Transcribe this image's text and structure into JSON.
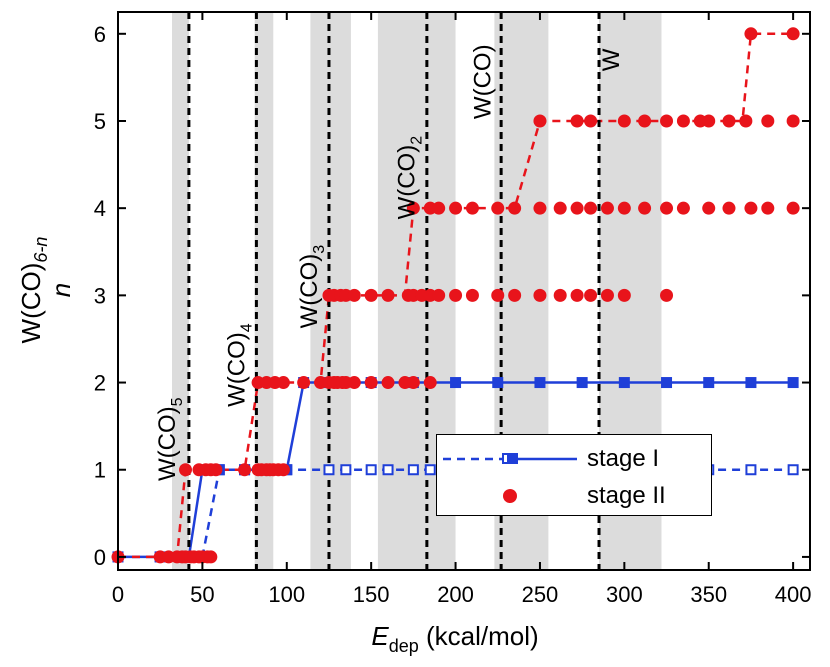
{
  "chart_data": {
    "type": "scatter",
    "title": "",
    "xlabel_main": "E",
    "xlabel_sub": "dep",
    "xlabel_rest": " (kcal/mol)",
    "ylabel": "n",
    "ylabel_formula": {
      "base": "W(CO)",
      "sub": "6-n"
    },
    "xlim": [
      0,
      410
    ],
    "ylim": [
      -0.15,
      6.25
    ],
    "x_ticks": [
      0,
      50,
      100,
      150,
      200,
      250,
      300,
      350,
      400
    ],
    "y_ticks": [
      0,
      1,
      2,
      3,
      4,
      5,
      6
    ],
    "vlines": [
      42,
      82,
      125,
      183,
      227,
      285
    ],
    "shaded_bands": [
      [
        32,
        42
      ],
      [
        81,
        92
      ],
      [
        114,
        138
      ],
      [
        154,
        200
      ],
      [
        223,
        255
      ],
      [
        285,
        322
      ]
    ],
    "annotations": [
      {
        "text": "W(CO)",
        "sub": "5",
        "x": 35,
        "y": 1.35
      },
      {
        "text": "W(CO)",
        "sub": "4",
        "x": 76,
        "y": 2.2
      },
      {
        "text": "W(CO)",
        "sub": "3",
        "x": 119,
        "y": 3.1
      },
      {
        "text": "W(CO)",
        "sub": "2",
        "x": 177,
        "y": 4.35
      },
      {
        "text": "W(CO)",
        "sub": "",
        "x": 222,
        "y": 5.45
      },
      {
        "text": "W",
        "sub": "",
        "x": 298,
        "y": 5.7
      }
    ],
    "series": [
      {
        "name": "stage I",
        "style": "solid",
        "color": "#1f3fd8",
        "marker": "square",
        "points": [
          [
            0,
            0
          ],
          [
            25,
            0
          ],
          [
            42,
            0
          ],
          [
            50,
            1
          ],
          [
            60,
            1
          ],
          [
            75,
            1
          ],
          [
            100,
            1
          ],
          [
            110,
            2
          ],
          [
            125,
            2
          ],
          [
            150,
            2
          ],
          [
            175,
            2
          ],
          [
            200,
            2
          ],
          [
            225,
            2
          ],
          [
            250,
            2
          ],
          [
            275,
            2
          ],
          [
            300,
            2
          ],
          [
            325,
            2
          ],
          [
            350,
            2
          ],
          [
            375,
            2
          ],
          [
            400,
            2
          ]
        ]
      },
      {
        "name": "stage I",
        "style": "dashed",
        "color": "#1f3fd8",
        "marker": "open-square",
        "points": [
          [
            0,
            0
          ],
          [
            25,
            0
          ],
          [
            50,
            0
          ],
          [
            60,
            1
          ],
          [
            75,
            1
          ],
          [
            100,
            1
          ],
          [
            125,
            1
          ],
          [
            135,
            1
          ],
          [
            150,
            1
          ],
          [
            160,
            1
          ],
          [
            175,
            1
          ],
          [
            185,
            1
          ],
          [
            200,
            1
          ],
          [
            225,
            1
          ],
          [
            250,
            1
          ],
          [
            275,
            1
          ],
          [
            300,
            1
          ],
          [
            325,
            1
          ],
          [
            350,
            1
          ],
          [
            375,
            1
          ],
          [
            400,
            1
          ]
        ]
      },
      {
        "name": "stage II",
        "style": "dashed",
        "color": "#e8141b",
        "marker": "circle",
        "points": [
          [
            0,
            0
          ],
          [
            25,
            0
          ],
          [
            30,
            0
          ],
          [
            35,
            0
          ],
          [
            38,
            0
          ],
          [
            40,
            0
          ],
          [
            43,
            0
          ],
          [
            45,
            0
          ],
          [
            48,
            0
          ],
          [
            50,
            0
          ],
          [
            53,
            0
          ],
          [
            55,
            0
          ],
          [
            40,
            1
          ],
          [
            48,
            1
          ],
          [
            52,
            1
          ],
          [
            55,
            1
          ],
          [
            58,
            1
          ],
          [
            75,
            1
          ],
          [
            83,
            1
          ],
          [
            85,
            1
          ],
          [
            88,
            1
          ],
          [
            90,
            1
          ],
          [
            92,
            1
          ],
          [
            95,
            1
          ],
          [
            98,
            1
          ],
          [
            83,
            2
          ],
          [
            88,
            2
          ],
          [
            93,
            2
          ],
          [
            98,
            2
          ],
          [
            110,
            2
          ],
          [
            120,
            2
          ],
          [
            125,
            2
          ],
          [
            128,
            2
          ],
          [
            130,
            2
          ],
          [
            133,
            2
          ],
          [
            135,
            2
          ],
          [
            140,
            2
          ],
          [
            150,
            2
          ],
          [
            160,
            2
          ],
          [
            170,
            2
          ],
          [
            175,
            2
          ],
          [
            185,
            2
          ],
          [
            125,
            3
          ],
          [
            128,
            3
          ],
          [
            132,
            3
          ],
          [
            135,
            3
          ],
          [
            140,
            3
          ],
          [
            150,
            3
          ],
          [
            160,
            3
          ],
          [
            172,
            3
          ],
          [
            175,
            3
          ],
          [
            180,
            3
          ],
          [
            185,
            3
          ],
          [
            190,
            3
          ],
          [
            200,
            3
          ],
          [
            210,
            3
          ],
          [
            225,
            3
          ],
          [
            235,
            3
          ],
          [
            250,
            3
          ],
          [
            262,
            3
          ],
          [
            272,
            3
          ],
          [
            280,
            3
          ],
          [
            290,
            3
          ],
          [
            300,
            3
          ],
          [
            325,
            3
          ],
          [
            175,
            4
          ],
          [
            185,
            4
          ],
          [
            190,
            4
          ],
          [
            200,
            4
          ],
          [
            210,
            4
          ],
          [
            225,
            4
          ],
          [
            235,
            4
          ],
          [
            250,
            4
          ],
          [
            262,
            4
          ],
          [
            272,
            4
          ],
          [
            280,
            4
          ],
          [
            290,
            4
          ],
          [
            300,
            4
          ],
          [
            312,
            4
          ],
          [
            325,
            4
          ],
          [
            335,
            4
          ],
          [
            350,
            4
          ],
          [
            362,
            4
          ],
          [
            375,
            4
          ],
          [
            385,
            4
          ],
          [
            400,
            4
          ],
          [
            250,
            5
          ],
          [
            272,
            5
          ],
          [
            280,
            5
          ],
          [
            300,
            5
          ],
          [
            312,
            5
          ],
          [
            325,
            5
          ],
          [
            335,
            5
          ],
          [
            345,
            5
          ],
          [
            350,
            5
          ],
          [
            362,
            5
          ],
          [
            372,
            5
          ],
          [
            385,
            5
          ],
          [
            400,
            5
          ],
          [
            375,
            6
          ],
          [
            400,
            6
          ]
        ]
      }
    ],
    "stage_ii_path": [
      [
        0,
        0
      ],
      [
        35,
        0
      ],
      [
        40,
        1
      ],
      [
        75,
        1
      ],
      [
        83,
        2
      ],
      [
        120,
        2
      ],
      [
        125,
        3
      ],
      [
        170,
        3
      ],
      [
        175,
        4
      ],
      [
        235,
        4
      ],
      [
        250,
        5
      ],
      [
        370,
        5
      ],
      [
        375,
        6
      ],
      [
        400,
        6
      ]
    ],
    "legend": [
      {
        "label": "stage I",
        "style": "solid+dashed",
        "color": "#1f3fd8"
      },
      {
        "label": "stage II",
        "style": "circle",
        "color": "#e8141b"
      }
    ],
    "legend_position": "bottom-right"
  }
}
